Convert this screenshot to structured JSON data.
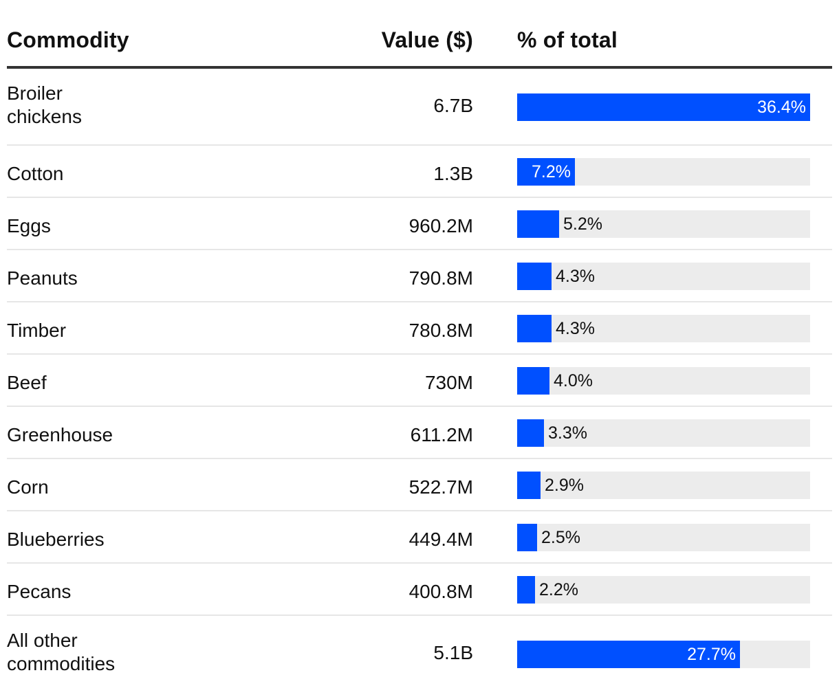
{
  "chart_data": {
    "type": "table",
    "columns": [
      "Commodity",
      "Value ($)",
      "% of total"
    ],
    "rows": [
      {
        "commodity": [
          "Broiler",
          "chickens"
        ],
        "value": "6.7B",
        "percent": 36.4,
        "percent_label": "36.4%"
      },
      {
        "commodity": [
          "Cotton"
        ],
        "value": "1.3B",
        "percent": 7.2,
        "percent_label": "7.2%"
      },
      {
        "commodity": [
          "Eggs"
        ],
        "value": "960.2M",
        "percent": 5.2,
        "percent_label": "5.2%"
      },
      {
        "commodity": [
          "Peanuts"
        ],
        "value": "790.8M",
        "percent": 4.3,
        "percent_label": "4.3%"
      },
      {
        "commodity": [
          "Timber"
        ],
        "value": "780.8M",
        "percent": 4.3,
        "percent_label": "4.3%"
      },
      {
        "commodity": [
          "Beef"
        ],
        "value": "730M",
        "percent": 4.0,
        "percent_label": "4.0%"
      },
      {
        "commodity": [
          "Greenhouse"
        ],
        "value": "611.2M",
        "percent": 3.3,
        "percent_label": "3.3%"
      },
      {
        "commodity": [
          "Corn"
        ],
        "value": "522.7M",
        "percent": 2.9,
        "percent_label": "2.9%"
      },
      {
        "commodity": [
          "Blueberries"
        ],
        "value": "449.4M",
        "percent": 2.5,
        "percent_label": "2.5%"
      },
      {
        "commodity": [
          "Pecans"
        ],
        "value": "400.8M",
        "percent": 2.2,
        "percent_label": "2.2%"
      },
      {
        "commodity": [
          "All other",
          "commodities"
        ],
        "value": "5.1B",
        "percent": 27.7,
        "percent_label": "27.7%"
      }
    ],
    "bar_max_percent": 36.4
  },
  "colors": {
    "bar": "#0050ff",
    "track": "#ececec",
    "header_rule": "#333333",
    "row_rule": "#e6e6e6"
  }
}
